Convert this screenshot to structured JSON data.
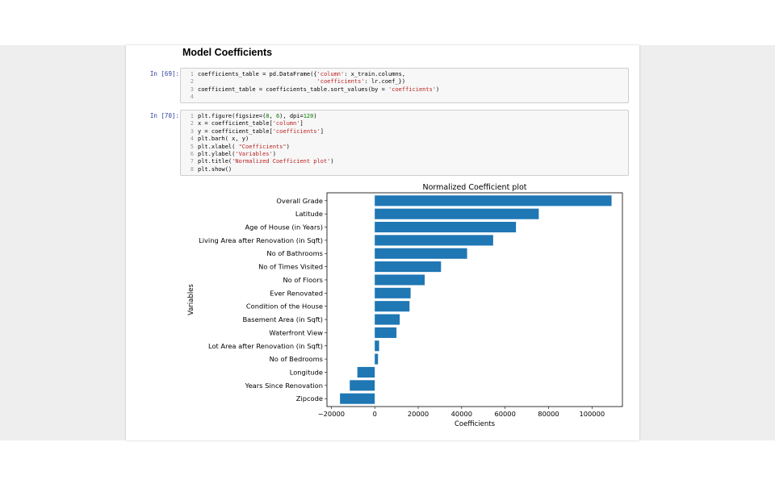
{
  "section_title": "Model Coefficients",
  "cells": [
    {
      "prompt": "In [69]:",
      "lines": [
        {
          "n": "1",
          "code": "coefficients_table = pd.DataFrame({'column': x_train.columns,"
        },
        {
          "n": "2",
          "code": "                                   'coefficients': lr.coef_})"
        },
        {
          "n": "3",
          "code": "coefficient_table = coefficients_table.sort_values(by = 'coefficients')"
        },
        {
          "n": "4",
          "code": ""
        }
      ]
    },
    {
      "prompt": "In [70]:",
      "lines": [
        {
          "n": "1",
          "code": "plt.figure(figsize=(8, 6), dpi=120)"
        },
        {
          "n": "2",
          "code": "x = coefficient_table['column']"
        },
        {
          "n": "3",
          "code": "y = coefficient_table['coefficients']"
        },
        {
          "n": "4",
          "code": "plt.barh( x, y)"
        },
        {
          "n": "5",
          "code": "plt.xlabel( \"Coefficients\")"
        },
        {
          "n": "6",
          "code": "plt.ylabel('Variables')"
        },
        {
          "n": "7",
          "code": "plt.title('Normalized Coefficient plot')"
        },
        {
          "n": "8",
          "code": "plt.show()"
        }
      ]
    }
  ],
  "chart_data": {
    "type": "bar",
    "orientation": "horizontal",
    "title": "Normalized Coefficient plot",
    "xlabel": "Coefficients",
    "ylabel": "Variables",
    "xlim": [
      -22000,
      114000
    ],
    "xticks": [
      -20000,
      0,
      20000,
      40000,
      60000,
      80000,
      100000
    ],
    "xtick_labels": [
      "−20000",
      "0",
      "20000",
      "40000",
      "60000",
      "80000",
      "100000"
    ],
    "bar_color": "#1f77b4",
    "grid": false,
    "categories": [
      "Overall Grade",
      "Latitude",
      "Age of House (in Years)",
      "Living Area after Renovation (in Sqft)",
      "No of Bathrooms",
      "No of Times Visited",
      "No of Floors",
      "Ever Renovated",
      "Condition of the House",
      "Basement Area (in Sqft)",
      "Waterfront View",
      "Lot Area after Renovation (in Sqft)",
      "No of Bedrooms",
      "Longitude",
      "Years Since Renovation",
      "Zipcode"
    ],
    "values": [
      109000,
      75500,
      65000,
      54500,
      42500,
      30500,
      23000,
      16500,
      16000,
      11500,
      10000,
      2000,
      1500,
      -8000,
      -11500,
      -16000
    ]
  }
}
